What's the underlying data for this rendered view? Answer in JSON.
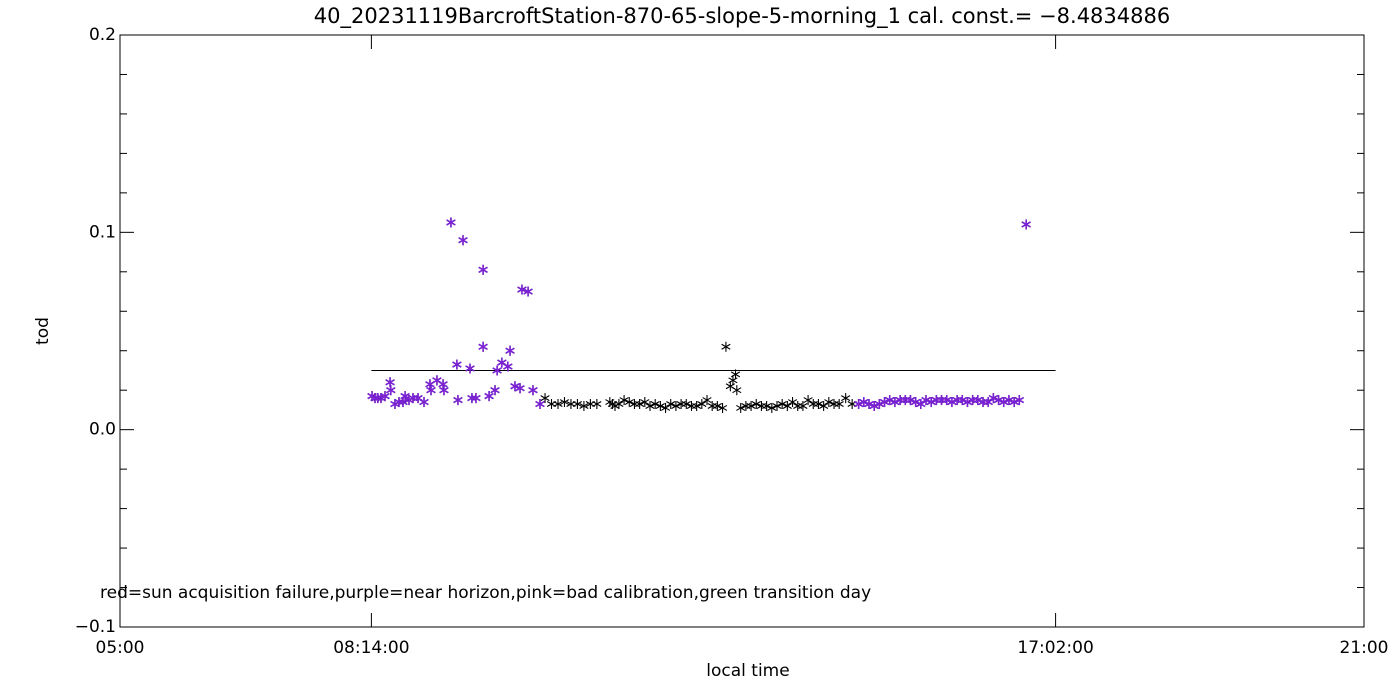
{
  "chart_data": {
    "type": "scatter",
    "title": "40_20231119BarcroftStation-870-65-slope-5-morning_1 cal. const.= −8.4834886",
    "x_label": "local time",
    "y_label": "tod",
    "annotation": "red=sun acquisition failure,purple=near horizon,pink=bad calibration,green transition day",
    "xlim": [
      300,
      1260
    ],
    "xticks": [
      {
        "value": 300,
        "label": "05:00"
      },
      {
        "value": 494,
        "label": "08:14:00"
      },
      {
        "value": 1022,
        "label": "17:02:00"
      },
      {
        "value": 1260,
        "label": "21:00"
      }
    ],
    "ylim": [
      -0.1,
      0.2
    ],
    "yticks": [
      {
        "value": -0.1,
        "label": "−0.1"
      },
      {
        "value": 0,
        "label": "0.0"
      },
      0.1,
      0.2
    ],
    "reference_line": {
      "y": 0.03,
      "x": [
        494,
        1022
      ]
    },
    "series": [
      {
        "color": "#000000",
        "x": [
          628,
          633,
          638,
          643,
          648,
          653,
          658,
          663,
          668,
          678,
          680,
          682,
          685,
          689,
          693,
          697,
          701,
          705,
          709,
          713,
          717,
          721,
          725,
          729,
          733,
          737,
          741,
          745,
          749,
          753,
          757,
          761,
          765,
          767.6,
          771,
          773,
          775,
          776,
          779,
          783,
          787,
          791,
          795,
          799,
          803,
          807,
          811,
          815,
          819,
          823,
          827,
          831,
          835,
          839,
          843,
          847,
          851,
          855,
          860,
          865
        ],
        "values": [
          0.016,
          0.013,
          0.013,
          0.014,
          0.013,
          0.013,
          0.012,
          0.013,
          0.013,
          0.014,
          0.013,
          0.012,
          0.013,
          0.015,
          0.014,
          0.013,
          0.013,
          0.014,
          0.012,
          0.013,
          0.012,
          0.011,
          0.013,
          0.012,
          0.013,
          0.013,
          0.012,
          0.012,
          0.013,
          0.015,
          0.012,
          0.012,
          0.011,
          0.042,
          0.022,
          0.025,
          0.028,
          0.02,
          0.011,
          0.012,
          0.012,
          0.013,
          0.012,
          0.012,
          0.011,
          0.012,
          0.013,
          0.012,
          0.014,
          0.012,
          0.012,
          0.015,
          0.013,
          0.013,
          0.012,
          0.014,
          0.013,
          0.013,
          0.016,
          0.013
        ]
      },
      {
        "color": "#7b22d4",
        "x": [
          494.5,
          496.8,
          499,
          501.4,
          504.5,
          508.4,
          509,
          512.2,
          515.3,
          518.4,
          520,
          523,
          526.1,
          530,
          534.6,
          539.2,
          540,
          544.6,
          549.3,
          550,
          555.4,
          560,
          560.8,
          564.7,
          570.1,
          571.6,
          574.7,
          580.2,
          580.2,
          584.8,
          589.4,
          591,
          594.7,
          599.3,
          601,
          604.8,
          608.7,
          610.2,
          614.9,
          618.7,
          624.1,
          870,
          874,
          878,
          882,
          886,
          890,
          894,
          898,
          902,
          906,
          910,
          914,
          918,
          922,
          926,
          930,
          934,
          938,
          942,
          946,
          950,
          954,
          958,
          962,
          966,
          970,
          974,
          978,
          982,
          986,
          990,
          994,
          999.3
        ],
        "values": [
          0.017,
          0.016,
          0.016,
          0.016,
          0.017,
          0.024,
          0.02,
          0.013,
          0.014,
          0.014,
          0.017,
          0.015,
          0.016,
          0.016,
          0.014,
          0.023,
          0.02,
          0.025,
          0.023,
          0.02,
          0.105,
          0.033,
          0.015,
          0.096,
          0.031,
          0.016,
          0.016,
          0.081,
          0.042,
          0.017,
          0.02,
          0.03,
          0.034,
          0.032,
          0.04,
          0.022,
          0.021,
          0.071,
          0.07,
          0.02,
          0.013,
          0.013,
          0.014,
          0.013,
          0.012,
          0.013,
          0.014,
          0.015,
          0.014,
          0.015,
          0.015,
          0.015,
          0.014,
          0.013,
          0.015,
          0.014,
          0.015,
          0.015,
          0.015,
          0.014,
          0.015,
          0.015,
          0.014,
          0.015,
          0.015,
          0.014,
          0.014,
          0.016,
          0.015,
          0.014,
          0.015,
          0.014,
          0.015,
          0.104
        ]
      }
    ]
  }
}
